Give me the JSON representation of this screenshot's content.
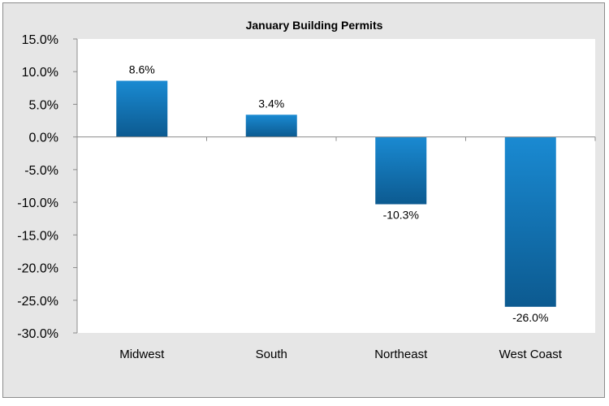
{
  "chart_data": {
    "type": "bar",
    "title": "January Building Permits",
    "categories": [
      "Midwest",
      "South",
      "Northeast",
      "West Coast"
    ],
    "values": [
      8.6,
      3.4,
      -10.3,
      -26.0
    ],
    "value_labels": [
      "8.6%",
      "3.4%",
      "-10.3%",
      "-26.0%"
    ],
    "yticks": [
      "15.0%",
      "10.0%",
      "5.0%",
      "0.0%",
      "-5.0%",
      "-10.0%",
      "-15.0%",
      "-20.0%",
      "-25.0%",
      "-30.0%"
    ],
    "ylim": [
      -30,
      15
    ],
    "grid": false,
    "colors": {
      "bar_top": "#1a86cc",
      "bar_bottom": "#0d5f97",
      "background": "#e6e6e6",
      "plot": "#ffffff"
    }
  }
}
